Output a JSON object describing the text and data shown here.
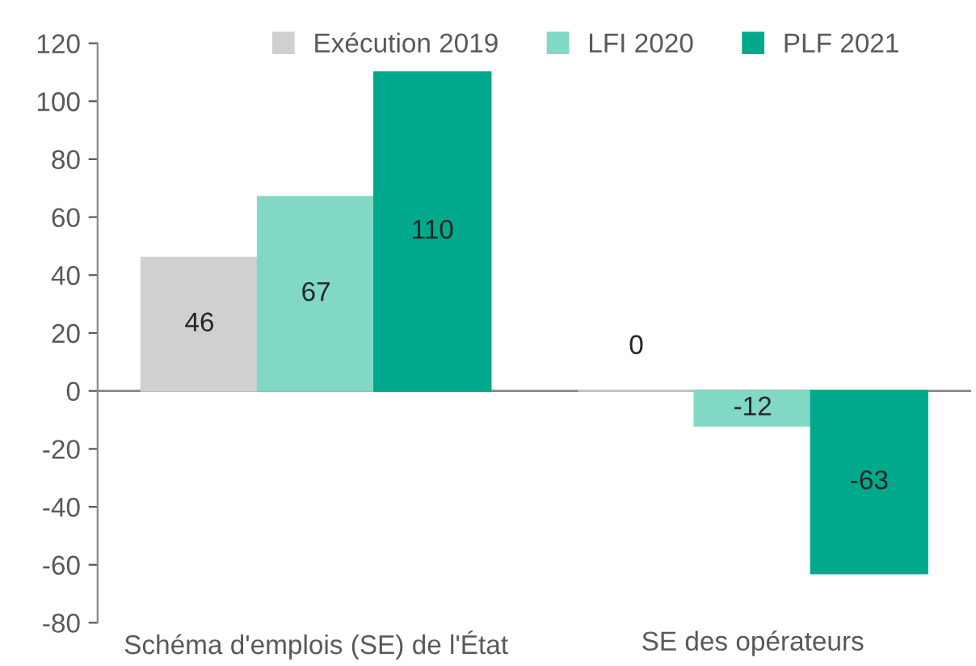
{
  "chart_data": {
    "type": "bar",
    "categories": [
      "Schéma d'emplois (SE) de l'État",
      "SE des opérateurs"
    ],
    "series": [
      {
        "name": "Exécution 2019",
        "color": "#d0d0d0",
        "values": [
          46,
          0
        ]
      },
      {
        "name": "LFI 2020",
        "color": "#80d8c5",
        "values": [
          67,
          -12
        ]
      },
      {
        "name": "PLF 2021",
        "color": "#00a98b",
        "values": [
          110,
          -63
        ]
      }
    ],
    "ylim": [
      -80,
      120
    ],
    "yticks": [
      -80,
      -60,
      -40,
      -20,
      0,
      20,
      40,
      60,
      80,
      100,
      120
    ],
    "data_labels": true,
    "legend": "top"
  }
}
